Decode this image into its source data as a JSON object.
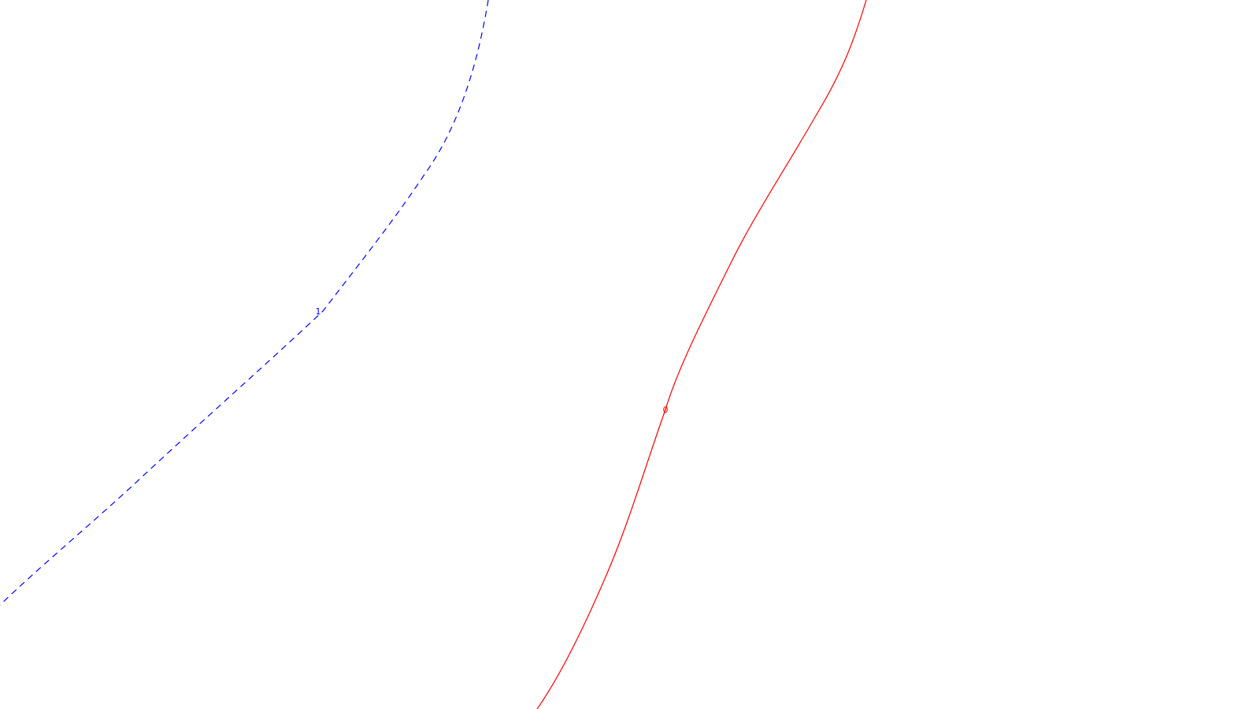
{
  "contours": [
    {
      "label": "1",
      "color": "#0000ff",
      "line_style": "dashed"
    },
    {
      "label": "0",
      "color": "#ff0000",
      "line_style": "solid"
    }
  ]
}
